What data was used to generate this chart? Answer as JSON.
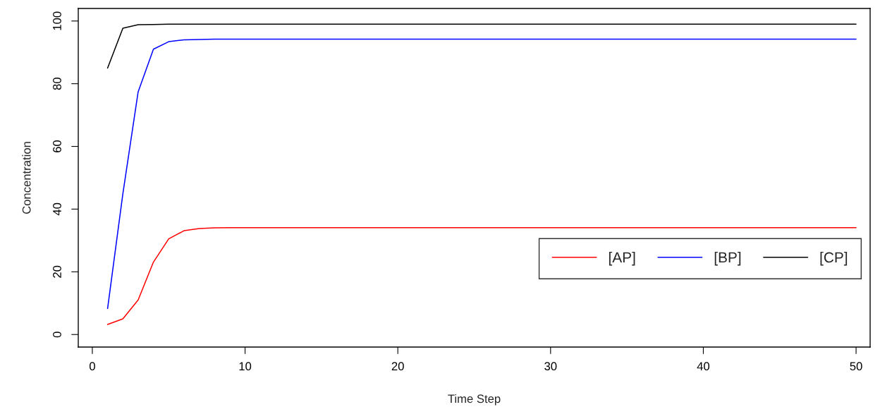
{
  "chart_data": {
    "type": "line",
    "xlabel": "Time Step",
    "ylabel": "Concentration",
    "x": [
      1,
      2,
      3,
      4,
      5,
      6,
      7,
      8,
      9,
      10,
      11,
      12,
      13,
      14,
      15,
      16,
      17,
      18,
      19,
      20,
      21,
      22,
      23,
      24,
      25,
      26,
      27,
      28,
      29,
      30,
      31,
      32,
      33,
      34,
      35,
      36,
      37,
      38,
      39,
      40,
      41,
      42,
      43,
      44,
      45,
      46,
      47,
      48,
      49,
      50
    ],
    "series": [
      {
        "name": "[AP]",
        "color": "#ff0000",
        "values": [
          3.2,
          5.0,
          11.0,
          23.1,
          30.5,
          33.1,
          33.8,
          34.0,
          34.1,
          34.1,
          34.1,
          34.1,
          34.1,
          34.1,
          34.1,
          34.1,
          34.1,
          34.1,
          34.1,
          34.1,
          34.1,
          34.1,
          34.1,
          34.1,
          34.1,
          34.1,
          34.1,
          34.1,
          34.1,
          34.1,
          34.1,
          34.1,
          34.1,
          34.1,
          34.1,
          34.1,
          34.1,
          34.1,
          34.1,
          34.1,
          34.1,
          34.1,
          34.1,
          34.1,
          34.1,
          34.1,
          34.1,
          34.1,
          34.1,
          34.1
        ]
      },
      {
        "name": "[BP]",
        "color": "#0000ff",
        "values": [
          8.3,
          44.9,
          77.4,
          91.0,
          93.4,
          94.0,
          94.1,
          94.2,
          94.2,
          94.2,
          94.2,
          94.2,
          94.2,
          94.2,
          94.2,
          94.2,
          94.2,
          94.2,
          94.2,
          94.2,
          94.2,
          94.2,
          94.2,
          94.2,
          94.2,
          94.2,
          94.2,
          94.2,
          94.2,
          94.2,
          94.2,
          94.2,
          94.2,
          94.2,
          94.2,
          94.2,
          94.2,
          94.2,
          94.2,
          94.2,
          94.2,
          94.2,
          94.2,
          94.2,
          94.2,
          94.2,
          94.2,
          94.2,
          94.2,
          94.2
        ]
      },
      {
        "name": "[CP]",
        "color": "#000000",
        "values": [
          85.0,
          97.7,
          98.8,
          98.9,
          99.0,
          99.0,
          99.0,
          99.0,
          99.0,
          99.0,
          99.0,
          99.0,
          99.0,
          99.0,
          99.0,
          99.0,
          99.0,
          99.0,
          99.0,
          99.0,
          99.0,
          99.0,
          99.0,
          99.0,
          99.0,
          99.0,
          99.0,
          99.0,
          99.0,
          99.0,
          99.0,
          99.0,
          99.0,
          99.0,
          99.0,
          99.0,
          99.0,
          99.0,
          99.0,
          99.0,
          99.0,
          99.0,
          99.0,
          99.0,
          99.0,
          99.0,
          99.0,
          99.0,
          99.0,
          99.0
        ]
      }
    ],
    "xlim": [
      -0.92,
      50.92
    ],
    "ylim": [
      -4,
      104
    ],
    "xticks": [
      0,
      10,
      20,
      30,
      40,
      50
    ],
    "yticks": [
      0,
      20,
      40,
      60,
      80,
      100
    ],
    "grid": false,
    "legend": "bottom right",
    "marker": "none",
    "line_style": "solid"
  }
}
